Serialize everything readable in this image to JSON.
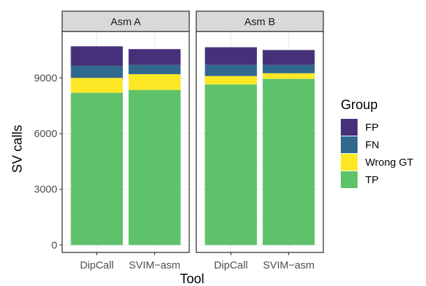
{
  "chart_data": {
    "type": "bar",
    "stacked": true,
    "facets": [
      "Asm A",
      "Asm B"
    ],
    "categories": [
      "DipCall",
      "SVIM−asm"
    ],
    "series": [
      {
        "name": "TP",
        "color": "#5DC26A",
        "values": {
          "Asm A": [
            8200,
            8350
          ],
          "Asm B": [
            8650,
            8950
          ]
        }
      },
      {
        "name": "Wrong GT",
        "color": "#FDE725",
        "values": {
          "Asm A": [
            800,
            850
          ],
          "Asm B": [
            450,
            300
          ]
        }
      },
      {
        "name": "FN",
        "color": "#31688E",
        "values": {
          "Asm A": [
            650,
            500
          ],
          "Asm B": [
            600,
            450
          ]
        }
      },
      {
        "name": "FP",
        "color": "#46307A",
        "values": {
          "Asm A": [
            1050,
            850
          ],
          "Asm B": [
            950,
            800
          ]
        }
      }
    ],
    "xlabel": "Tool",
    "ylabel": "SV calls",
    "ylim": [
      -400,
      11500
    ],
    "yticks": [
      0,
      3000,
      6000,
      9000
    ],
    "ytick_labels": [
      "0",
      "3000",
      "6000",
      "9000"
    ],
    "legend": {
      "title": "Group",
      "position": "right",
      "entries": [
        "FP",
        "FN",
        "Wrong GT",
        "TP"
      ]
    },
    "grid": true,
    "theme": "bw"
  }
}
